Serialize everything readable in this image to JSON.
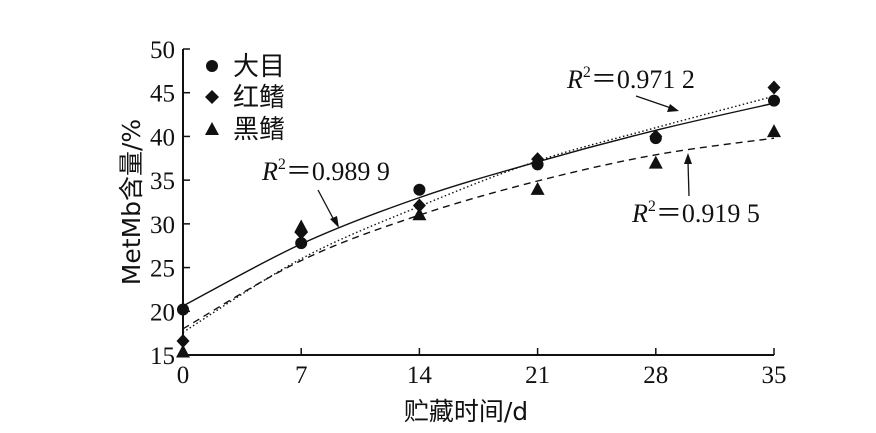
{
  "chart_data": {
    "type": "scatter",
    "xlabel": "贮藏时间/d",
    "ylabel": "MetMb含量/%",
    "xlim": [
      0,
      35
    ],
    "ylim": [
      15,
      50
    ],
    "xticks": [
      0,
      7,
      14,
      21,
      28,
      35
    ],
    "yticks": [
      15,
      20,
      25,
      30,
      35,
      40,
      45,
      50
    ],
    "xtick_labels": [
      "0",
      "7",
      "14",
      "21",
      "28",
      "35"
    ],
    "ytick_labels": [
      "15",
      "20",
      "25",
      "30",
      "35",
      "40",
      "45",
      "50"
    ],
    "grid": false,
    "legend_position": "top-left",
    "series": [
      {
        "name": "大目",
        "marker": "circle",
        "x": [
          0,
          7,
          14,
          21,
          28,
          35
        ],
        "values": [
          20.2,
          27.8,
          33.9,
          36.8,
          39.8,
          44.1
        ],
        "fit_line_style": "solid",
        "fit_curve": {
          "x": [
            0,
            7,
            14,
            21,
            28,
            35
          ],
          "y": [
            20.6,
            27.7,
            33.0,
            37.1,
            40.7,
            43.8
          ]
        },
        "r2_label": "0.989 9"
      },
      {
        "name": "红鳍",
        "marker": "diamond",
        "x": [
          0,
          7,
          14,
          21,
          28,
          35
        ],
        "values": [
          16.6,
          29.0,
          32.1,
          37.4,
          40.0,
          45.6
        ],
        "fit_line_style": "dotted",
        "fit_curve": {
          "x": [
            0,
            7,
            14,
            21,
            28,
            35
          ],
          "y": [
            17.6,
            26.0,
            32.0,
            37.2,
            41.0,
            44.6
          ]
        },
        "r2_label": "0.971 2"
      },
      {
        "name": "黑鳍",
        "marker": "triangle",
        "x": [
          0,
          7,
          14,
          21,
          28,
          35
        ],
        "values": [
          15.4,
          29.7,
          31.1,
          34.0,
          37.0,
          40.6
        ],
        "fit_line_style": "dashed",
        "fit_curve": {
          "x": [
            0,
            7,
            14,
            21,
            28,
            35
          ],
          "y": [
            18.0,
            25.8,
            31.0,
            34.9,
            37.9,
            39.8
          ]
        },
        "r2_label": "0.919 5"
      }
    ],
    "annotations": [
      {
        "r_symbol": "R",
        "sup": "2",
        "eq": "＝",
        "value": "0.989 9",
        "series": "大目"
      },
      {
        "r_symbol": "R",
        "sup": "2",
        "eq": "＝",
        "value": "0.971 2",
        "series": "红鳍"
      },
      {
        "r_symbol": "R",
        "sup": "2",
        "eq": "＝",
        "value": "0.919 5",
        "series": "黑鳍"
      }
    ]
  }
}
